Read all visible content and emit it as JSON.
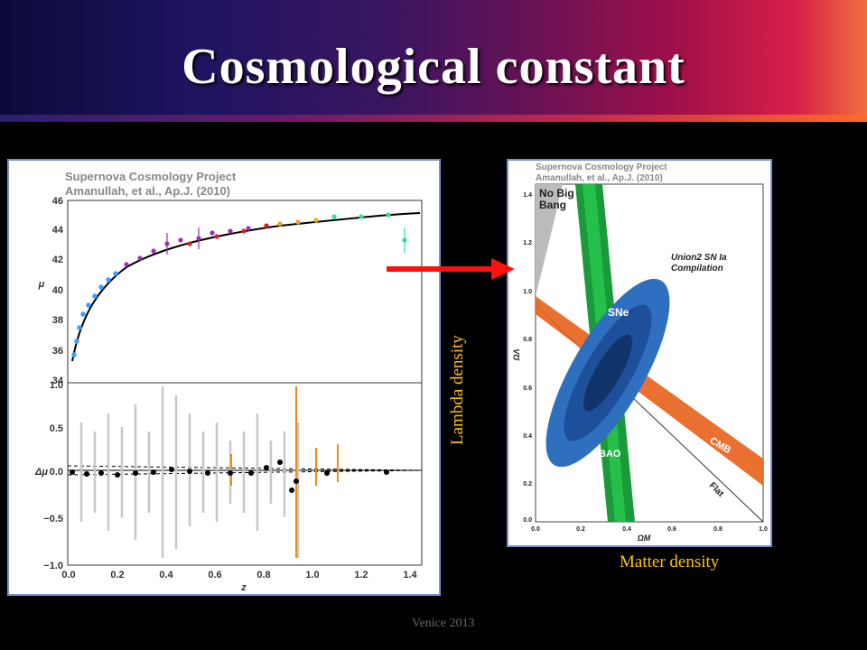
{
  "slide": {
    "title": "Cosmological constant",
    "footer": "Venice 2013"
  },
  "left_figure": {
    "title_line1": "Supernova Cosmology Project",
    "title_line2": "Amanullah, et al., Ap.J. (2010)",
    "top_axis": {
      "label": "μ",
      "ticks": [
        "34",
        "36",
        "38",
        "40",
        "42",
        "44",
        "46"
      ]
    },
    "bottom_axis": {
      "label": "Δμ",
      "ticks": [
        "1.0",
        "0.5",
        "0.0",
        "−0.5",
        "−1.0"
      ]
    },
    "x_axis": {
      "label": "z",
      "ticks": [
        "0.0",
        "0.2",
        "0.4",
        "0.6",
        "0.8",
        "1.0",
        "1.2",
        "1.4"
      ]
    }
  },
  "right_figure": {
    "title_line1": "Supernova Cosmology Project",
    "title_line2": "Amanullah, et al., Ap.J. (2010)",
    "no_big_bang_line1": "No Big",
    "no_big_bang_line2": "Bang",
    "union_line1": "Union2 SN Ia",
    "union_line2": "Compilation",
    "sne_label": "SNe",
    "bao_label": "BAO",
    "cmb_label": "CMB",
    "flat_label": "Flat",
    "y_axis_label": "ΩΛ",
    "x_axis_label": "ΩM",
    "y_ticks": [
      "1.4",
      "1.2",
      "1.0",
      "0.8",
      "0.6",
      "0.4",
      "0.2",
      "0.0"
    ],
    "x_ticks": [
      "0.0",
      "0.2",
      "0.4",
      "0.6",
      "0.8",
      "1.0"
    ]
  },
  "annotations": {
    "lambda_density": "Lambda density",
    "matter_density": "Matter density"
  },
  "colors": {
    "annotation": "#ffc400",
    "arrow": "#ff0000",
    "sne_fill": "#2f6fc0",
    "bao_fill": "#1a9a3a",
    "cmb_fill": "#e8601a"
  }
}
